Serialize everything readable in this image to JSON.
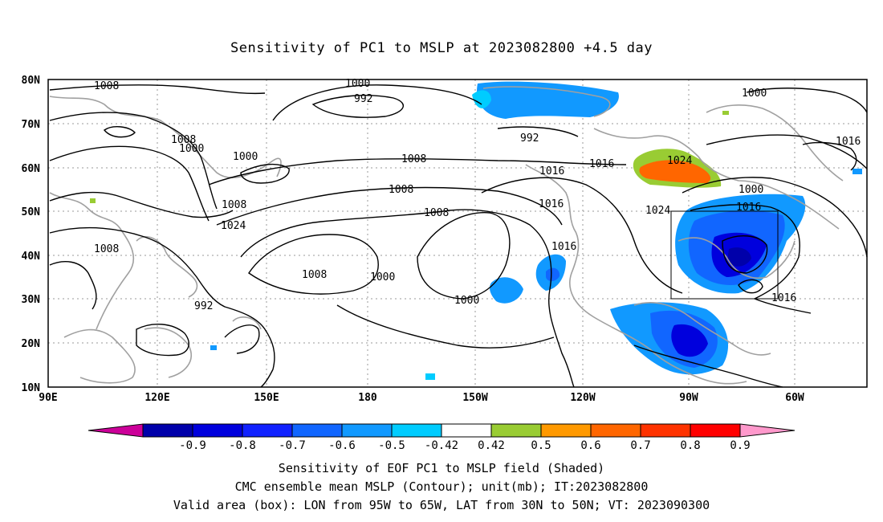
{
  "title": "Sensitivity of PC1 to MSLP at 2023082800 +4.5 day",
  "map": {
    "lat_ticks": [
      "80N",
      "70N",
      "60N",
      "50N",
      "40N",
      "30N",
      "20N",
      "10N"
    ],
    "lon_ticks": [
      "90E",
      "120E",
      "150E",
      "180",
      "150W",
      "120W",
      "90W",
      "60W"
    ],
    "isobar_labels": [
      "1008",
      "1000",
      "992",
      "1000",
      "992",
      "1016",
      "1008",
      "1000",
      "1000",
      "1008",
      "1016",
      "1024",
      "1016",
      "1008",
      "1000",
      "1008",
      "1016",
      "1008",
      "1024",
      "1016",
      "1024",
      "1016",
      "1008",
      "1008",
      "1000",
      "1000",
      "1016",
      "992"
    ],
    "box": {
      "lon_west": "95W",
      "lon_east": "65W",
      "lat_south": "30N",
      "lat_north": "50N"
    }
  },
  "colorbar": {
    "labels": [
      "-0.9",
      "-0.8",
      "-0.7",
      "-0.6",
      "-0.5",
      "-0.42",
      "0.42",
      "0.5",
      "0.6",
      "0.7",
      "0.8",
      "0.9"
    ],
    "colors": [
      "#cc0099",
      "#0000aa",
      "#0000dd",
      "#1122ff",
      "#1166ff",
      "#1199ff",
      "#00ccff",
      "#ffffff",
      "#99cc33",
      "#ff9900",
      "#ff6600",
      "#ff3300",
      "#ff0000",
      "#ff99cc"
    ]
  },
  "footer": {
    "line1": "Sensitivity of EOF PC1 to MSLP field (Shaded)",
    "line2": "CMC ensemble mean MSLP (Contour); unit(mb); IT:2023082800",
    "line3": "Valid area (box): LON from 95W to 65W, LAT from 30N to 50N; VT: 2023090300"
  }
}
